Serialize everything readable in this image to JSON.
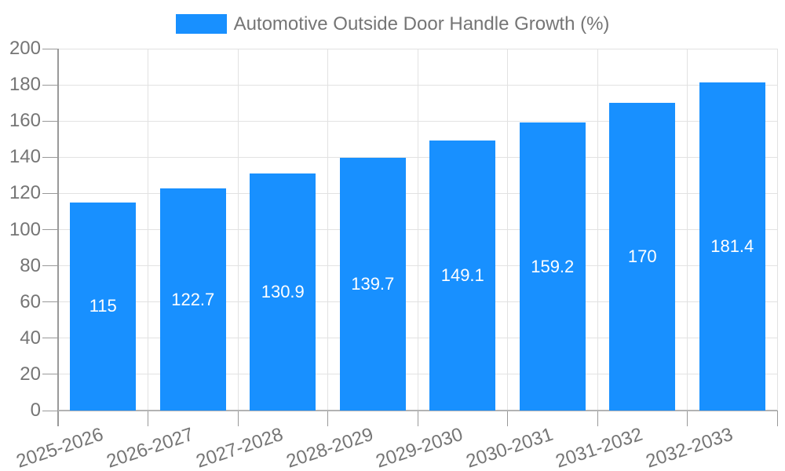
{
  "legend": {
    "label": "Automotive Outside Door Handle Growth (%)"
  },
  "chart_data": {
    "type": "bar",
    "title": "Automotive Outside Door Handle Growth (%)",
    "legend_entries": [
      "Automotive Outside Door Handle Growth (%)"
    ],
    "legend_position": "top-center",
    "categories": [
      "2025-2026",
      "2026-2027",
      "2027-2028",
      "2028-2029",
      "2029-2030",
      "2030-2031",
      "2031-2032",
      "2032-2033"
    ],
    "values": [
      115,
      122.7,
      130.9,
      139.7,
      149.1,
      159.2,
      170,
      181.4
    ],
    "value_labels": [
      "115",
      "122.7",
      "130.9",
      "139.7",
      "149.1",
      "159.2",
      "170",
      "181.4"
    ],
    "xlabel": "",
    "ylabel": "",
    "ylim": [
      0,
      200
    ],
    "ytick_step": 20,
    "ytick_labels": [
      "0",
      "20",
      "40",
      "60",
      "80",
      "100",
      "120",
      "140",
      "160",
      "180",
      "200"
    ],
    "grid": true,
    "colors": {
      "bar": "#1890ff",
      "grid": "#e2e2e2",
      "axis_y": "#999999",
      "axis_x": "#b3b3b3",
      "tick": "#999999",
      "text": "#757575",
      "value_text": "#ffffff",
      "background": "#ffffff"
    }
  }
}
